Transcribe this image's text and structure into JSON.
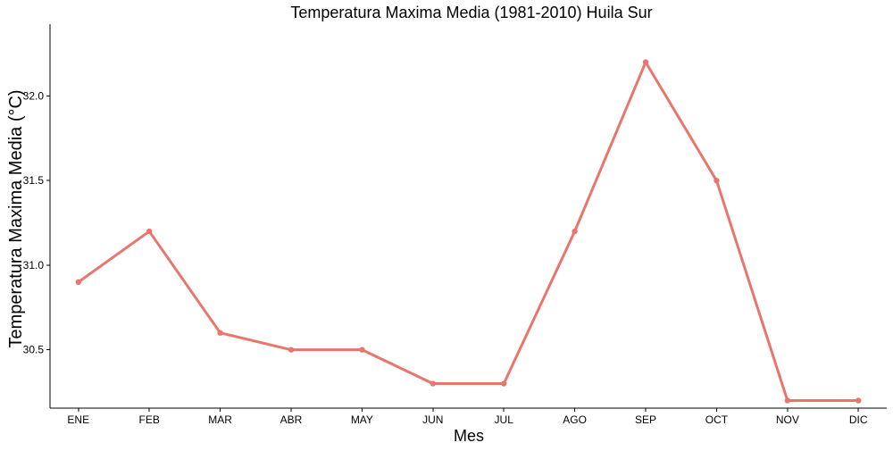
{
  "chart_data": {
    "type": "line",
    "title": "Temperatura Maxima Media (1981-2010)  Huila Sur",
    "xlabel": "Mes",
    "ylabel": "Temperatura Maxima Media  (°C)",
    "categories": [
      "ENE",
      "FEB",
      "MAR",
      "ABR",
      "MAY",
      "JUN",
      "JUL",
      "AGO",
      "SEP",
      "OCT",
      "NOV",
      "DIC"
    ],
    "series": [
      {
        "values": [
          30.9,
          31.2,
          30.6,
          30.5,
          30.5,
          30.3,
          30.3,
          31.2,
          32.2,
          31.5,
          30.2,
          30.2
        ]
      }
    ],
    "yticks": [
      30.5,
      31.0,
      31.5,
      32.0
    ],
    "ytick_labels": [
      "30.5",
      "31.0",
      "31.5",
      "32.0"
    ],
    "ylim": [
      30.155,
      32.425
    ],
    "grid": false,
    "legend": "none",
    "line_color": "#E8766D"
  }
}
